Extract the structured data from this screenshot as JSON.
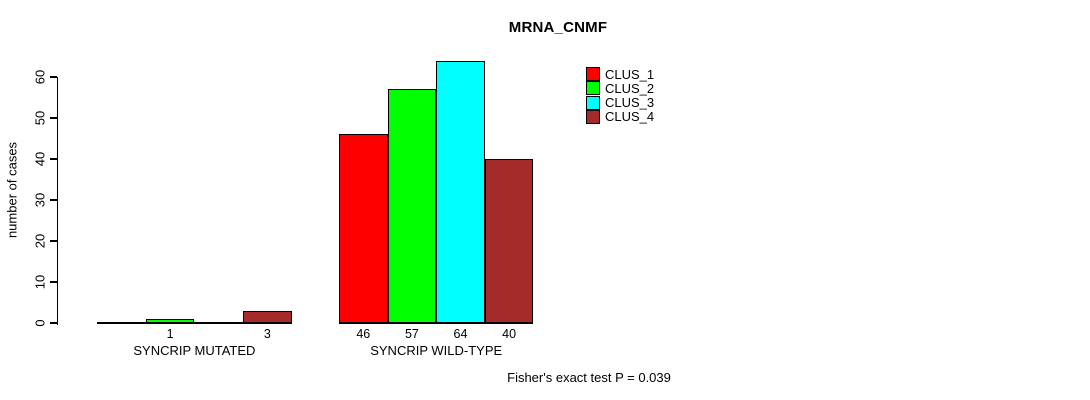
{
  "chart_data": {
    "type": "bar",
    "title": "MRNA_CNMF",
    "ylabel": "number of cases",
    "xlabel": "",
    "categories": [
      "SYNCRIP MUTATED",
      "SYNCRIP WILD-TYPE"
    ],
    "series": [
      {
        "name": "CLUS_1",
        "color": "#ff0000",
        "values": [
          0,
          46
        ]
      },
      {
        "name": "CLUS_2",
        "color": "#00ff00",
        "values": [
          1,
          57
        ]
      },
      {
        "name": "CLUS_3",
        "color": "#00ffff",
        "values": [
          0,
          64
        ]
      },
      {
        "name": "CLUS_4",
        "color": "#a52a2a",
        "values": [
          3,
          40
        ]
      }
    ],
    "visible_bar_value_labels": [
      "1",
      "3",
      "46",
      "57",
      "64",
      "40"
    ],
    "ylim": [
      0,
      60
    ],
    "yticks": [
      0,
      10,
      20,
      30,
      40,
      50,
      60
    ],
    "grid": false,
    "legend_position": "top-right",
    "legend_entries": [
      "CLUS_1",
      "CLUS_2",
      "CLUS_3",
      "CLUS_4"
    ],
    "annotation": "Fisher's exact test P = 0.039"
  }
}
